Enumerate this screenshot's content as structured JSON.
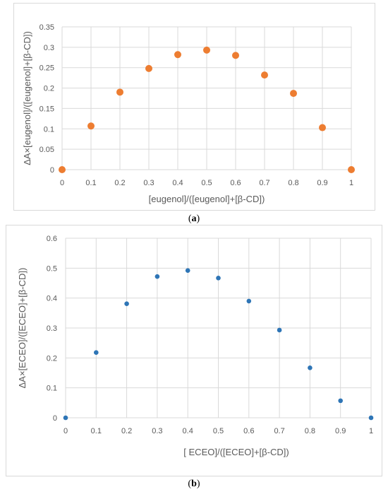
{
  "chart_data": [
    {
      "type": "scatter",
      "panel": "a",
      "caption": "a",
      "xlabel": "[eugenol]/([eugenol]+[β-CD])",
      "ylabel": "ΔA×[eugenol]/([eugenol]+[β-CD])",
      "xlim": [
        0,
        1
      ],
      "ylim": [
        0,
        0.35
      ],
      "xticks": [
        "0",
        "0.1",
        "0.2",
        "0.3",
        "0.4",
        "0.5",
        "0.6",
        "0.7",
        "0.8",
        "0.9",
        "1"
      ],
      "yticks": [
        "0",
        "0.05",
        "0.1",
        "0.15",
        "0.2",
        "0.25",
        "0.3",
        "0.35"
      ],
      "grid": true,
      "legend": "none",
      "color": "#ED7D31",
      "x": [
        0,
        0.1,
        0.2,
        0.3,
        0.4,
        0.5,
        0.6,
        0.7,
        0.8,
        0.9,
        1
      ],
      "y": [
        0,
        0.107,
        0.19,
        0.248,
        0.282,
        0.293,
        0.28,
        0.232,
        0.187,
        0.103,
        0
      ]
    },
    {
      "type": "scatter",
      "panel": "b",
      "caption": "b",
      "xlabel": "[ ECEO]/([ECEO]+[β-CD])",
      "ylabel": "ΔA×[ECEO]/([ECEO]+[β-CD])",
      "xlim": [
        0,
        1
      ],
      "ylim": [
        0,
        0.6
      ],
      "xticks": [
        "0",
        "0.1",
        "0.2",
        "0.3",
        "0.4",
        "0.5",
        "0.6",
        "0.7",
        "0.8",
        "0.9",
        "1"
      ],
      "yticks": [
        "0",
        "0.1",
        "0.2",
        "0.3",
        "0.4",
        "0.5",
        "0.6"
      ],
      "grid": true,
      "legend": "none",
      "color": "#2E75B6",
      "x": [
        0,
        0.1,
        0.2,
        0.3,
        0.4,
        0.5,
        0.6,
        0.7,
        0.8,
        0.9,
        1
      ],
      "y": [
        0,
        0.218,
        0.381,
        0.472,
        0.492,
        0.467,
        0.39,
        0.293,
        0.167,
        0.057,
        0
      ]
    }
  ]
}
